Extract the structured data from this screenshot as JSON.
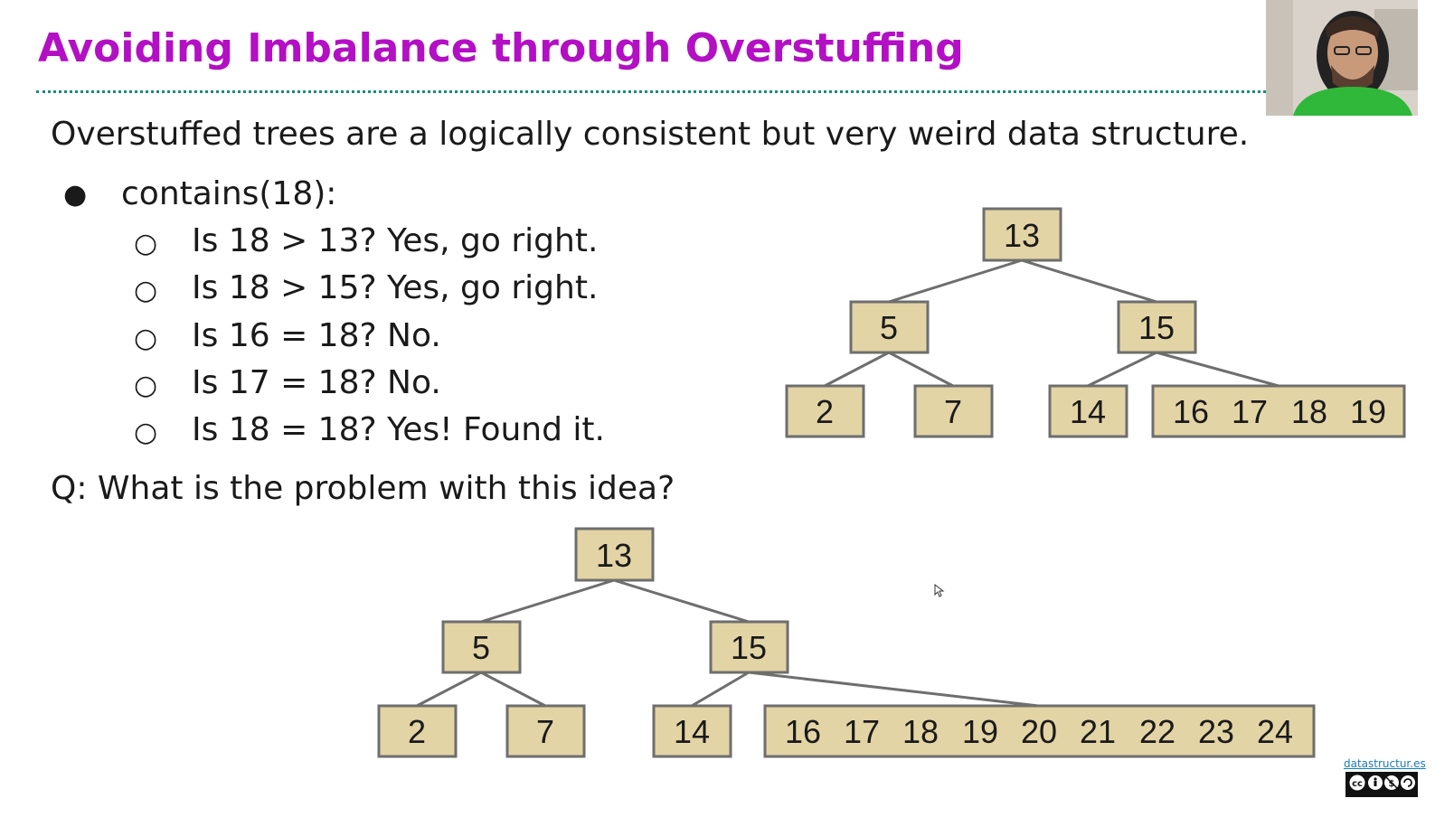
{
  "slide": {
    "title": "Avoiding Imbalance through Overstuffing",
    "intro": "Overstuffed trees are a logically consistent but very weird data structure.",
    "bullet": "contains(18):",
    "subbullets": [
      "Is 18 > 13? Yes, go right.",
      "Is 18 > 15? Yes, go right.",
      "Is 16 = 18? No.",
      "Is 17 = 18? No.",
      "Is 18 = 18? Yes! Found it."
    ],
    "question": "Q: What is the problem with this idea?"
  },
  "tree_top": {
    "root": "13",
    "left": "5",
    "right": "15",
    "leaves": [
      "2",
      "7",
      "14"
    ],
    "big_leaf": [
      "16",
      "17",
      "18",
      "19"
    ]
  },
  "tree_bottom": {
    "root": "13",
    "left": "5",
    "right": "15",
    "leaves": [
      "2",
      "7",
      "14"
    ],
    "big_leaf": [
      "16",
      "17",
      "18",
      "19",
      "20",
      "21",
      "22",
      "23",
      "24"
    ]
  },
  "footer": {
    "link": "datastructur.es",
    "license_badge": "cc-by-nc-sa-badge"
  },
  "colors": {
    "title": "#b30fc4",
    "node_fill": "#e3d4a5",
    "node_stroke": "#6e6e6e",
    "edge": "#6e6e6e",
    "rule": "#1a8a7a"
  }
}
